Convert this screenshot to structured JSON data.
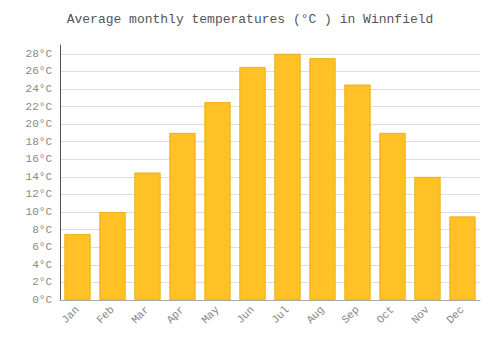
{
  "chart_data": {
    "type": "bar",
    "title": "Average monthly temperatures (°C ) in Winnfield",
    "categories": [
      "Jan",
      "Feb",
      "Mar",
      "Apr",
      "May",
      "Jun",
      "Jul",
      "Aug",
      "Sep",
      "Oct",
      "Nov",
      "Dec"
    ],
    "values": [
      7.5,
      10.0,
      14.5,
      19.0,
      22.5,
      26.5,
      28.0,
      27.5,
      24.5,
      19.0,
      14.0,
      9.5
    ],
    "color": "#FFC125",
    "ylim": [
      0,
      29
    ],
    "yticks": [
      {
        "value": 0,
        "label": "0°C"
      },
      {
        "value": 2,
        "label": "2°C"
      },
      {
        "value": 4,
        "label": "4°C"
      },
      {
        "value": 6,
        "label": "6°C"
      },
      {
        "value": 8,
        "label": "8°C"
      },
      {
        "value": 10,
        "label": "10°C"
      },
      {
        "value": 12,
        "label": "12°C"
      },
      {
        "value": 14,
        "label": "14°C"
      },
      {
        "value": 16,
        "label": "16°C"
      },
      {
        "value": 18,
        "label": "18°C"
      },
      {
        "value": 20,
        "label": "20°C"
      },
      {
        "value": 22,
        "label": "22°C"
      },
      {
        "value": 24,
        "label": "24°C"
      },
      {
        "value": 26,
        "label": "26°C"
      },
      {
        "value": 28,
        "label": "28°C"
      }
    ],
    "grid": true
  }
}
